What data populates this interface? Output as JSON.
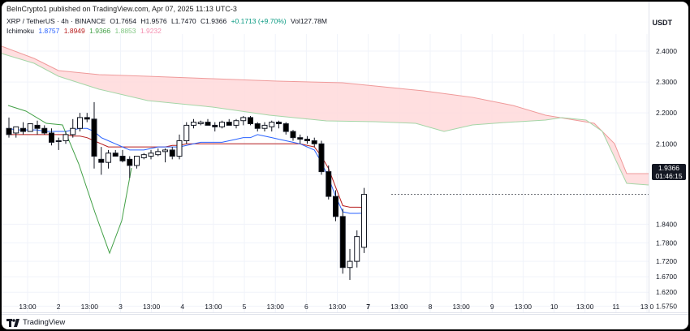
{
  "publisher_line": "BeInCrypto1 published on TradingView.com, Apr 07, 2025 11:13 UTC-3",
  "symbol_line": {
    "symbol": "XRP / TetherUS · 4h · BINANCE",
    "open": "O1.7654",
    "high": "H1.9576",
    "low": "L1.7470",
    "close": "C1.9366",
    "change": "+0.1713 (+9.70%)",
    "volume": "Vol127.78M"
  },
  "ichimoku_line": {
    "label": "Ichimoku",
    "values": [
      {
        "text": "1.8757",
        "color": "#2962ff"
      },
      {
        "text": "1.8949",
        "color": "#b71c1c"
      },
      {
        "text": "1.9366",
        "color": "#43a047"
      },
      {
        "text": "1.8853",
        "color": "#81c784"
      },
      {
        "text": "1.9232",
        "color": "#f48fb1"
      }
    ]
  },
  "currency_label": "USDT",
  "price_tag": {
    "price": "1.9366",
    "countdown": "01:46:15"
  },
  "footer": {
    "brand": "TradingView"
  },
  "colors": {
    "tenkan": "#2962ff",
    "kijun": "#b71c1c",
    "chikou": "#43a047",
    "cloud_bear_fill": "#ffd9db",
    "senkou_a": "#a5d6a7",
    "senkou_b": "#ef9a9a",
    "candle_up_border": "#131722",
    "candle_down": "#000000",
    "grid": "#f0f3fa"
  },
  "chart_data": {
    "type": "candlestick",
    "y_axis_ticks": [
      "2.4000",
      "2.3000",
      "2.2000",
      "2.1000",
      "2.0000",
      "1.9366",
      "1.8400",
      "1.7800",
      "1.7200",
      "1.6700",
      "1.6200",
      "1.5750"
    ],
    "y_range": [
      1.555,
      2.455
    ],
    "x_axis_ticks": [
      "13:00",
      "2",
      "13:00",
      "3",
      "13:00",
      "4",
      "13:00",
      "5",
      "13:00",
      "6",
      "13:00",
      "7",
      "13:00",
      "8",
      "13:00",
      "9",
      "13:00",
      "10",
      "13:00",
      "11",
      "13:0"
    ],
    "candles": [
      {
        "o": 2.15,
        "h": 2.185,
        "l": 2.12,
        "c": 2.13
      },
      {
        "o": 2.135,
        "h": 2.15,
        "l": 2.12,
        "c": 2.155
      },
      {
        "o": 2.15,
        "h": 2.17,
        "l": 2.13,
        "c": 2.14
      },
      {
        "o": 2.14,
        "h": 2.165,
        "l": 2.14,
        "c": 2.165
      },
      {
        "o": 2.16,
        "h": 2.175,
        "l": 2.13,
        "c": 2.15
      },
      {
        "o": 2.15,
        "h": 2.16,
        "l": 2.13,
        "c": 2.135
      },
      {
        "o": 2.135,
        "h": 2.15,
        "l": 2.095,
        "c": 2.105
      },
      {
        "o": 2.11,
        "h": 2.12,
        "l": 2.08,
        "c": 2.11
      },
      {
        "o": 2.11,
        "h": 2.14,
        "l": 2.1,
        "c": 2.13
      },
      {
        "o": 2.13,
        "h": 2.18,
        "l": 2.12,
        "c": 2.15
      },
      {
        "o": 2.15,
        "h": 2.2,
        "l": 2.14,
        "c": 2.185
      },
      {
        "o": 2.185,
        "h": 2.2,
        "l": 2.17,
        "c": 2.18
      },
      {
        "o": 2.18,
        "h": 2.235,
        "l": 2.02,
        "c": 2.06
      },
      {
        "o": 2.05,
        "h": 2.09,
        "l": 2.0,
        "c": 2.04
      },
      {
        "o": 2.04,
        "h": 2.08,
        "l": 2.02,
        "c": 2.07
      },
      {
        "o": 2.07,
        "h": 2.08,
        "l": 2.06,
        "c": 2.06
      },
      {
        "o": 2.06,
        "h": 2.08,
        "l": 2.04,
        "c": 2.045
      },
      {
        "o": 2.05,
        "h": 2.06,
        "l": 1.99,
        "c": 2.03
      },
      {
        "o": 2.03,
        "h": 2.06,
        "l": 2.02,
        "c": 2.06
      },
      {
        "o": 2.055,
        "h": 2.07,
        "l": 2.05,
        "c": 2.065
      },
      {
        "o": 2.06,
        "h": 2.08,
        "l": 2.05,
        "c": 2.07
      },
      {
        "o": 2.065,
        "h": 2.085,
        "l": 2.06,
        "c": 2.075
      },
      {
        "o": 2.075,
        "h": 2.085,
        "l": 2.04,
        "c": 2.08
      },
      {
        "o": 2.08,
        "h": 2.09,
        "l": 2.05,
        "c": 2.06
      },
      {
        "o": 2.06,
        "h": 2.13,
        "l": 2.05,
        "c": 2.11
      },
      {
        "o": 2.11,
        "h": 2.17,
        "l": 2.1,
        "c": 2.16
      },
      {
        "o": 2.16,
        "h": 2.18,
        "l": 2.15,
        "c": 2.17
      },
      {
        "o": 2.165,
        "h": 2.175,
        "l": 2.16,
        "c": 2.17
      },
      {
        "o": 2.17,
        "h": 2.18,
        "l": 2.16,
        "c": 2.16
      },
      {
        "o": 2.16,
        "h": 2.17,
        "l": 2.14,
        "c": 2.155
      },
      {
        "o": 2.155,
        "h": 2.175,
        "l": 2.15,
        "c": 2.17
      },
      {
        "o": 2.17,
        "h": 2.18,
        "l": 2.16,
        "c": 2.16
      },
      {
        "o": 2.16,
        "h": 2.18,
        "l": 2.15,
        "c": 2.175
      },
      {
        "o": 2.175,
        "h": 2.19,
        "l": 2.16,
        "c": 2.185
      },
      {
        "o": 2.185,
        "h": 2.19,
        "l": 2.16,
        "c": 2.165
      },
      {
        "o": 2.165,
        "h": 2.17,
        "l": 2.14,
        "c": 2.15
      },
      {
        "o": 2.15,
        "h": 2.17,
        "l": 2.14,
        "c": 2.16
      },
      {
        "o": 2.155,
        "h": 2.175,
        "l": 2.14,
        "c": 2.17
      },
      {
        "o": 2.17,
        "h": 2.175,
        "l": 2.15,
        "c": 2.165
      },
      {
        "o": 2.165,
        "h": 2.17,
        "l": 2.13,
        "c": 2.14
      },
      {
        "o": 2.14,
        "h": 2.145,
        "l": 2.11,
        "c": 2.12
      },
      {
        "o": 2.12,
        "h": 2.13,
        "l": 2.1,
        "c": 2.115
      },
      {
        "o": 2.115,
        "h": 2.125,
        "l": 2.1,
        "c": 2.11
      },
      {
        "o": 2.11,
        "h": 2.12,
        "l": 2.09,
        "c": 2.1
      },
      {
        "o": 2.1,
        "h": 2.11,
        "l": 2.0,
        "c": 2.01
      },
      {
        "o": 2.01,
        "h": 2.03,
        "l": 1.92,
        "c": 1.93
      },
      {
        "o": 1.93,
        "h": 1.95,
        "l": 1.85,
        "c": 1.865
      },
      {
        "o": 1.865,
        "h": 1.89,
        "l": 1.68,
        "c": 1.7
      },
      {
        "o": 1.7,
        "h": 1.76,
        "l": 1.66,
        "c": 1.72
      },
      {
        "o": 1.72,
        "h": 1.82,
        "l": 1.7,
        "c": 1.8
      },
      {
        "o": 1.7654,
        "h": 1.9576,
        "l": 1.747,
        "c": 1.9366
      }
    ],
    "tenkan": [
      2.15,
      2.145,
      2.145,
      2.145,
      2.145,
      2.14,
      2.14,
      2.14,
      2.14,
      2.145,
      2.15,
      2.15,
      2.14,
      2.12,
      2.11,
      2.1,
      2.09,
      2.08,
      2.08,
      2.08,
      2.085,
      2.09,
      2.09,
      2.09,
      2.09,
      2.095,
      2.1,
      2.105,
      2.105,
      2.105,
      2.105,
      2.11,
      2.115,
      2.12,
      2.12,
      2.13,
      2.125,
      2.12,
      2.115,
      2.11,
      2.105,
      2.1,
      2.09,
      2.08,
      2.04,
      1.99,
      1.93,
      1.88,
      1.875,
      1.875,
      1.8757
    ],
    "kijun": [
      2.13,
      2.13,
      2.13,
      2.13,
      2.13,
      2.13,
      2.13,
      2.13,
      2.13,
      2.125,
      2.125,
      2.12,
      2.11,
      2.1,
      2.09,
      2.09,
      2.09,
      2.09,
      2.09,
      2.09,
      2.09,
      2.09,
      2.09,
      2.095,
      2.095,
      2.1,
      2.1,
      2.1,
      2.1,
      2.1,
      2.1,
      2.1,
      2.1,
      2.1,
      2.1,
      2.1,
      2.1,
      2.1,
      2.1,
      2.1,
      2.1,
      2.1,
      2.095,
      2.09,
      2.06,
      2.02,
      1.96,
      1.9,
      1.895,
      1.895,
      1.8949
    ]
  }
}
